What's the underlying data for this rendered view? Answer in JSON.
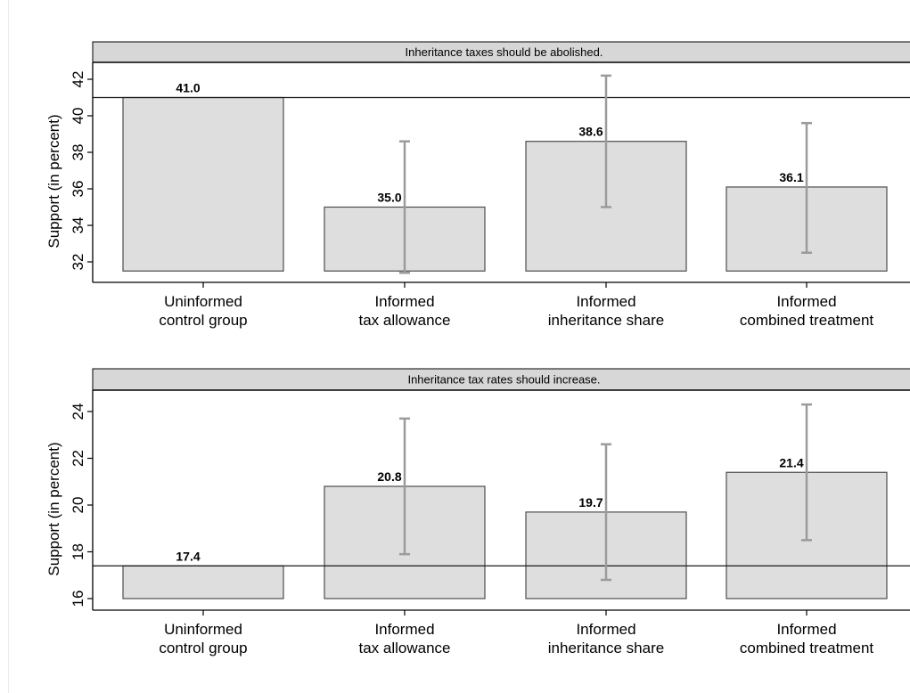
{
  "chart_data": [
    {
      "type": "bar",
      "title": "Inheritance taxes should be abolished.",
      "ylabel": "Support (in percent)",
      "categories": [
        [
          "Uninformed",
          "control group"
        ],
        [
          "Informed",
          "tax allowance"
        ],
        [
          "Informed",
          "inheritance share"
        ],
        [
          "Informed",
          "combined treatment"
        ]
      ],
      "values": [
        41.0,
        35.0,
        38.6,
        36.1
      ],
      "value_labels": [
        "41.0",
        "35.0",
        "38.6",
        "36.1"
      ],
      "error_bars": [
        null,
        [
          31.4,
          38.6
        ],
        [
          35.0,
          42.2
        ],
        [
          32.5,
          39.6
        ]
      ],
      "reference_line": 41.0,
      "bar_base": 31.5,
      "ylim": [
        31.0,
        43.0
      ],
      "yticks": [
        32,
        34,
        36,
        38,
        40,
        42
      ],
      "grid": false,
      "colors": {
        "bar_fill": "#dedede",
        "bar_edge": "#4d4d4d",
        "error_bar": "#9b9b9b",
        "reference_line": "#1a1a1a",
        "title_strip": "#d7d7d7"
      }
    },
    {
      "type": "bar",
      "title": "Inheritance tax rates should increase.",
      "ylabel": "Support (in percent)",
      "categories": [
        [
          "Uninformed",
          "control group"
        ],
        [
          "Informed",
          "tax allowance"
        ],
        [
          "Informed",
          "inheritance share"
        ],
        [
          "Informed",
          "combined treatment"
        ]
      ],
      "values": [
        17.4,
        20.8,
        19.7,
        21.4
      ],
      "value_labels": [
        "17.4",
        "20.8",
        "19.7",
        "21.4"
      ],
      "error_bars": [
        null,
        [
          17.9,
          23.7
        ],
        [
          16.8,
          22.6
        ],
        [
          18.5,
          24.3
        ]
      ],
      "reference_line": 17.4,
      "bar_base": 16.0,
      "ylim": [
        15.5,
        24.6
      ],
      "yticks": [
        16,
        18,
        20,
        22,
        24
      ],
      "grid": false,
      "colors": {
        "bar_fill": "#dedede",
        "bar_edge": "#4d4d4d",
        "error_bar": "#9b9b9b",
        "reference_line": "#1a1a1a",
        "title_strip": "#d7d7d7"
      }
    }
  ]
}
